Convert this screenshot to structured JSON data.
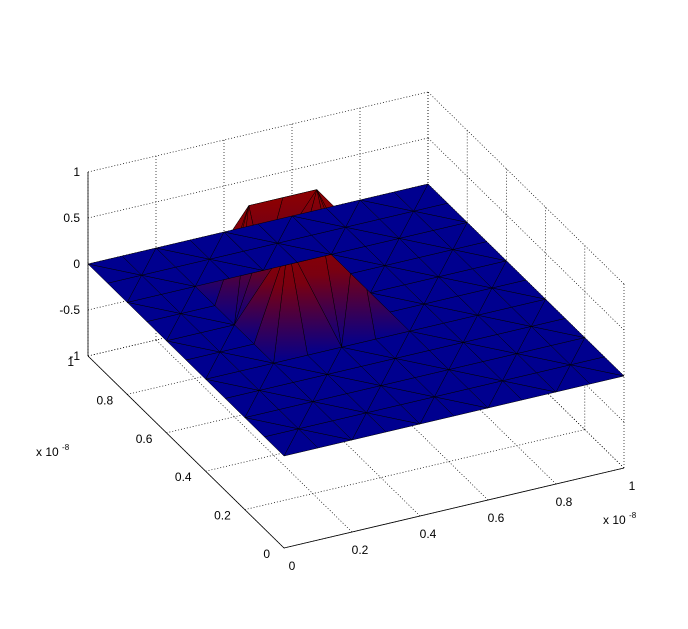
{
  "chart_data": {
    "type": "surface",
    "title": "",
    "x_axis": {
      "range": [
        0,
        1
      ],
      "ticks": [
        0,
        0.2,
        0.4,
        0.6,
        0.8,
        1
      ],
      "tick_labels": [
        "0",
        "0.2",
        "0.4",
        "0.6",
        "0.8",
        "1"
      ],
      "exponent_label": "x 10",
      "exponent": "-8"
    },
    "y_axis": {
      "range": [
        0,
        1
      ],
      "ticks": [
        0,
        0.2,
        0.4,
        0.6,
        0.8,
        1
      ],
      "tick_labels": [
        "0",
        "0.2",
        "0.4",
        "0.6",
        "0.8",
        "1"
      ],
      "exponent_label": "x 10",
      "exponent": "-8"
    },
    "z_axis": {
      "range": [
        -1,
        1
      ],
      "ticks": [
        -1,
        -0.5,
        0,
        0.5,
        1
      ],
      "tick_labels": [
        "-1",
        "-0.5",
        "0",
        "0.5",
        "1"
      ]
    },
    "grid": true,
    "box": true,
    "mesh": {
      "type": "triangulated",
      "divisions": 10,
      "description_values": "z = 0 everywhere except a raised square plateau at z = 1"
    },
    "plateau": {
      "x_range": [
        0.3,
        0.5
      ],
      "y_range": [
        0.5,
        0.7
      ],
      "z_top": 1,
      "z_base": 0
    },
    "colormap": {
      "low": "#00008f",
      "high": "#8f0000"
    }
  }
}
